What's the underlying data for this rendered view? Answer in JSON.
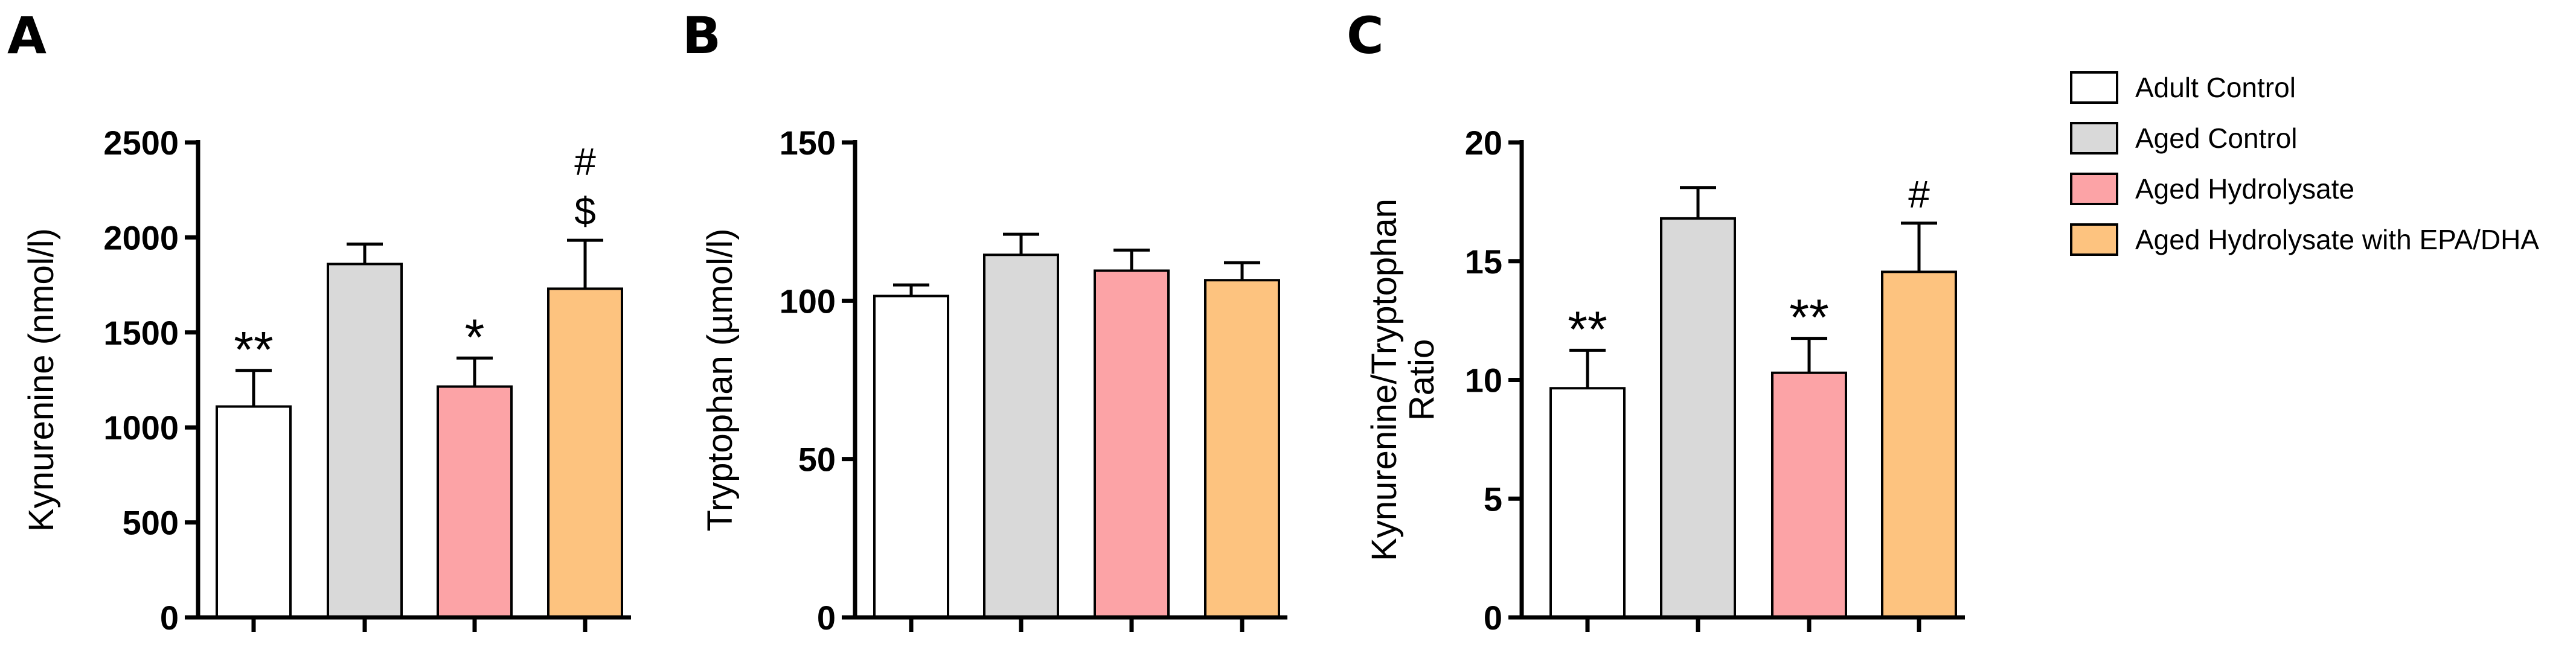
{
  "colors": {
    "Adult Control": "#ffffff",
    "Aged Control": "#d9d9d9",
    "Aged Hydrolysate": "#fca3a6",
    "Aged Hydrolysate with EPA/DHA": "#fdc37f"
  },
  "legend": {
    "placement": "top-right",
    "entries": [
      "Adult Control",
      "Aged Control",
      "Aged Hydrolysate",
      "Aged Hydrolysate with EPA/DHA"
    ]
  },
  "chart_data": [
    {
      "panel": "A",
      "type": "bar",
      "ylabel": "Kynurenine (nmol/l)",
      "ylim": [
        0,
        2500
      ],
      "yticks": [
        0,
        500,
        1000,
        1500,
        2000,
        2500
      ],
      "categories": [
        "Adult Control",
        "Aged Control",
        "Aged Hydrolysate",
        "Aged Hydrolysate with EPA/DHA"
      ],
      "values": [
        1110,
        1860,
        1215,
        1730
      ],
      "errors": [
        190,
        105,
        150,
        255
      ],
      "annotations": [
        [
          "**"
        ],
        [],
        [
          "*"
        ],
        [
          "#",
          "$"
        ]
      ]
    },
    {
      "panel": "B",
      "type": "bar",
      "ylabel": "Tryptophan (µmol/l)",
      "ylim": [
        0,
        150
      ],
      "yticks": [
        0,
        50,
        100,
        150
      ],
      "categories": [
        "Adult Control",
        "Aged Control",
        "Aged Hydrolysate",
        "Aged Hydrolysate with EPA/DHA"
      ],
      "values": [
        101.5,
        114.5,
        109.5,
        106.5
      ],
      "errors": [
        3.5,
        6.5,
        6.5,
        5.5
      ],
      "annotations": [
        [],
        [],
        [],
        []
      ]
    },
    {
      "panel": "C",
      "type": "bar",
      "ylabel": [
        "Kynurenine/Tryptophan",
        "Ratio"
      ],
      "ylim": [
        0,
        20
      ],
      "yticks": [
        0,
        5,
        10,
        15,
        20
      ],
      "categories": [
        "Adult Control",
        "Aged Control",
        "Aged Hydrolysate",
        "Aged Hydrolysate with EPA/DHA"
      ],
      "values": [
        9.65,
        16.8,
        10.3,
        14.55
      ],
      "errors": [
        1.6,
        1.3,
        1.45,
        2.05
      ],
      "annotations": [
        [
          "**"
        ],
        [],
        [
          "**"
        ],
        [
          "#"
        ]
      ]
    }
  ]
}
